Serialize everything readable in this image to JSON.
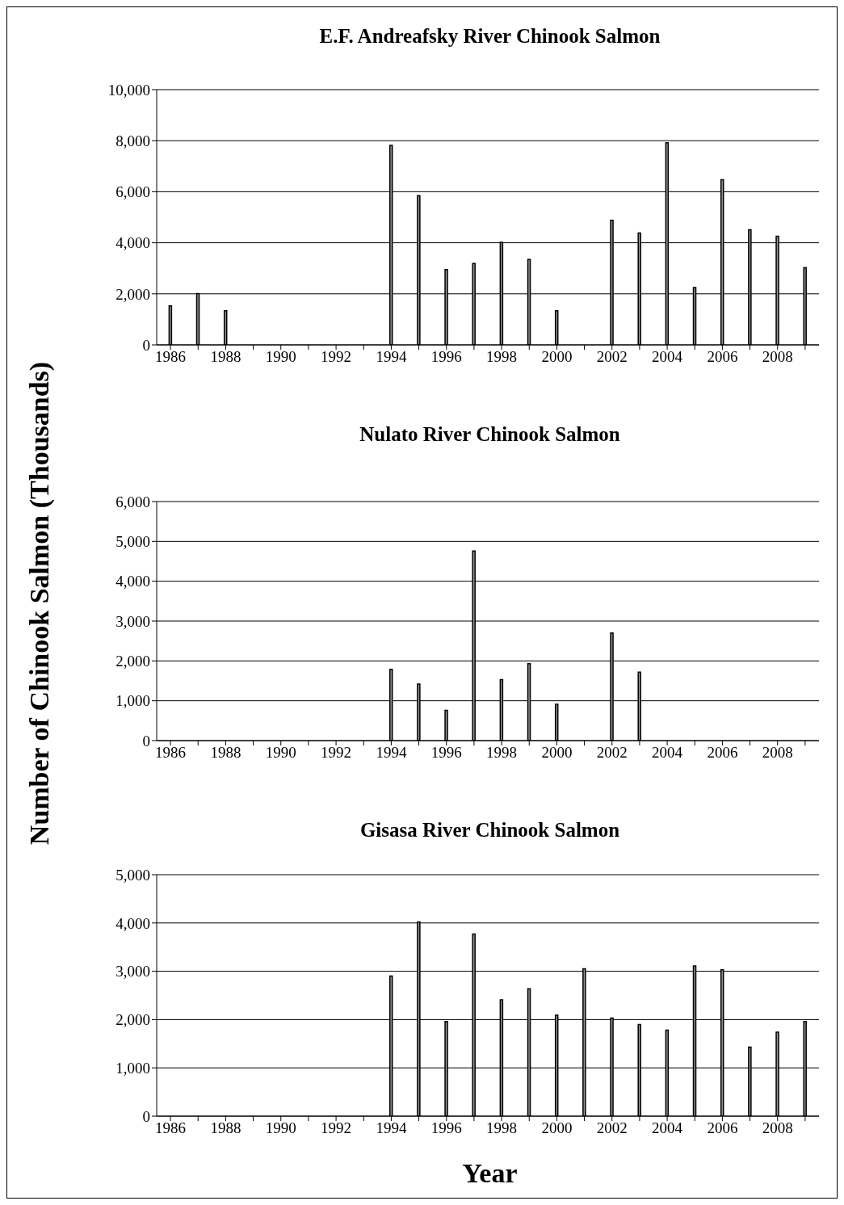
{
  "chart_data": [
    {
      "type": "bar",
      "title": "E.F. Andreafsky River Chinook Salmon",
      "categories": [
        "1986",
        null,
        "1988",
        null,
        "1990",
        null,
        "1992",
        null,
        "1994",
        null,
        "1996",
        null,
        "1998",
        null,
        "2000",
        null,
        "2002",
        null,
        "2004",
        null,
        "2006",
        null,
        "2008",
        null
      ],
      "values": [
        1530,
        2010,
        1340,
        null,
        null,
        null,
        null,
        null,
        7820,
        5850,
        2950,
        3190,
        4020,
        3350,
        1340,
        null,
        4880,
        4380,
        7920,
        2250,
        6470,
        4510,
        4260,
        3020
      ],
      "color": "#969696",
      "ylim": [
        0,
        10000
      ],
      "yticks": [
        {
          "value": 0,
          "label": "0"
        },
        {
          "value": 2000,
          "label": "2,000"
        },
        {
          "value": 4000,
          "label": "4,000"
        },
        {
          "value": 6000,
          "label": "6,000"
        },
        {
          "value": 8000,
          "label": "8,000"
        },
        {
          "value": 10000,
          "label": "10,000"
        }
      ],
      "grid": "y"
    },
    {
      "type": "bar",
      "title": "Nulato River Chinook Salmon",
      "ylabel": "Number of Chinook Salmon (Thousands)",
      "categories": [
        "1986",
        null,
        "1988",
        null,
        "1990",
        null,
        "1992",
        null,
        "1994",
        null,
        "1996",
        null,
        "1998",
        null,
        "2000",
        null,
        "2002",
        null,
        "2004",
        null,
        "2006",
        null,
        "2008",
        null
      ],
      "values": [
        null,
        null,
        null,
        null,
        null,
        null,
        null,
        null,
        1790,
        1420,
        760,
        4760,
        1530,
        1930,
        910,
        null,
        2700,
        1720,
        null,
        null,
        null,
        null,
        null,
        null
      ],
      "color": "#969696",
      "ylim": [
        0,
        6000
      ],
      "yticks": [
        {
          "value": 0,
          "label": "0"
        },
        {
          "value": 1000,
          "label": "1,000"
        },
        {
          "value": 2000,
          "label": "2,000"
        },
        {
          "value": 3000,
          "label": "3,000"
        },
        {
          "value": 4000,
          "label": "4,000"
        },
        {
          "value": 5000,
          "label": "5,000"
        },
        {
          "value": 6000,
          "label": "6,000"
        }
      ],
      "grid": "y"
    },
    {
      "type": "bar",
      "title": "Gisasa River Chinook Salmon",
      "xlabel": "Year",
      "categories": [
        "1986",
        null,
        "1988",
        null,
        "1990",
        null,
        "1992",
        null,
        "1994",
        null,
        "1996",
        null,
        "1998",
        null,
        "2000",
        null,
        "2002",
        null,
        "2004",
        null,
        "2006",
        null,
        "2008",
        null
      ],
      "values": [
        null,
        null,
        null,
        null,
        null,
        null,
        null,
        null,
        2900,
        4020,
        1960,
        3770,
        2410,
        2640,
        2090,
        3050,
        2030,
        1900,
        1780,
        3110,
        3030,
        1430,
        1740,
        1960
      ],
      "color": "#969696",
      "ylim": [
        0,
        5000
      ],
      "yticks": [
        {
          "value": 0,
          "label": "0"
        },
        {
          "value": 1000,
          "label": "1,000"
        },
        {
          "value": 2000,
          "label": "2,000"
        },
        {
          "value": 3000,
          "label": "3,000"
        },
        {
          "value": 4000,
          "label": "4,000"
        },
        {
          "value": 5000,
          "label": "5,000"
        }
      ],
      "grid": "y"
    }
  ]
}
